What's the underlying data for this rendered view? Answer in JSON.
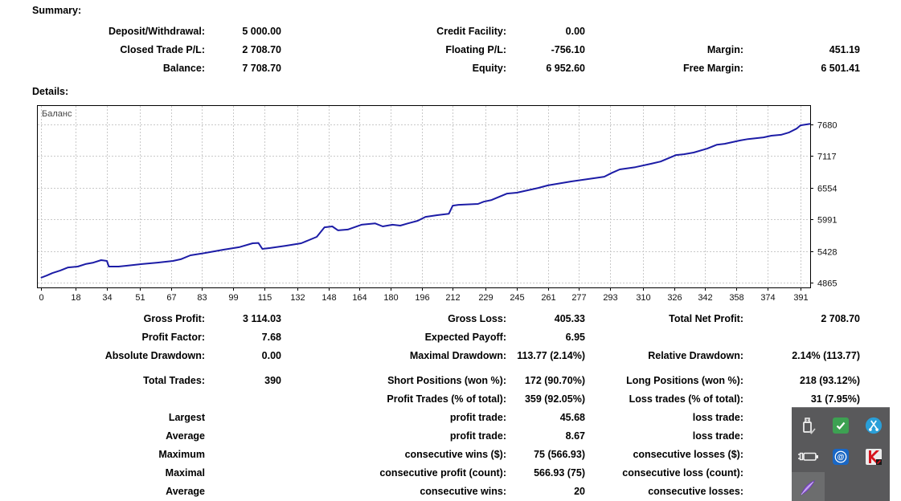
{
  "summary": {
    "heading": "Summary:",
    "rows": [
      [
        "Deposit/Withdrawal:",
        "5 000.00",
        "Credit Facility:",
        "0.00",
        "",
        ""
      ],
      [
        "Closed Trade P/L:",
        "2 708.70",
        "Floating P/L:",
        "-756.10",
        "Margin:",
        "451.19"
      ],
      [
        "Balance:",
        "7 708.70",
        "Equity:",
        "6 952.60",
        "Free Margin:",
        "6 501.41"
      ]
    ]
  },
  "details": {
    "heading": "Details:",
    "profit_rows": [
      [
        "Gross Profit:",
        "3 114.03",
        "Gross Loss:",
        "405.33",
        "Total Net Profit:",
        "2 708.70"
      ],
      [
        "Profit Factor:",
        "7.68",
        "Expected Payoff:",
        "6.95",
        "",
        ""
      ],
      [
        "Absolute Drawdown:",
        "0.00",
        "Maximal Drawdown:",
        "113.77 (2.14%)",
        "Relative Drawdown:",
        "2.14% (113.77)"
      ]
    ],
    "trade_rows": [
      [
        "Total Trades:",
        "390",
        "Short Positions (won %):",
        "172 (90.70%)",
        "Long Positions (won %):",
        "218 (93.12%)"
      ],
      [
        "",
        "",
        "Profit Trades (% of total):",
        "359 (92.05%)",
        "Loss trades (% of total):",
        "31 (7.95%)"
      ],
      [
        "Largest",
        "",
        "profit trade:",
        "45.68",
        "loss trade:",
        ""
      ],
      [
        "Average",
        "",
        "profit trade:",
        "8.67",
        "loss trade:",
        ""
      ],
      [
        "Maximum",
        "",
        "consecutive wins ($):",
        "75 (566.93)",
        "consecutive losses ($):",
        ""
      ],
      [
        "Maximal",
        "",
        "consecutive profit (count):",
        "566.93 (75)",
        "consecutive loss (count):",
        ""
      ],
      [
        "Average",
        "",
        "consecutive wins:",
        "20",
        "consecutive losses:",
        ""
      ]
    ]
  },
  "chart_data": {
    "type": "line",
    "title": "Баланс",
    "xlabel": "",
    "ylabel": "",
    "x_ticks": [
      0,
      18,
      34,
      51,
      67,
      83,
      99,
      115,
      132,
      148,
      164,
      180,
      196,
      212,
      229,
      245,
      261,
      277,
      293,
      310,
      326,
      342,
      358,
      374,
      391
    ],
    "y_ticks": [
      4865,
      5428,
      5991,
      6554,
      7117,
      7680
    ],
    "xlim": [
      -2,
      396
    ],
    "ylim": [
      4779,
      8023
    ],
    "grid": "dashed",
    "legend": "none",
    "series": [
      {
        "name": "Баланс",
        "points": [
          [
            0,
            4950
          ],
          [
            3,
            4990
          ],
          [
            6,
            5035
          ],
          [
            10,
            5080
          ],
          [
            14,
            5135
          ],
          [
            19,
            5150
          ],
          [
            23,
            5195
          ],
          [
            27,
            5220
          ],
          [
            31,
            5265
          ],
          [
            34,
            5250
          ],
          [
            35,
            5150
          ],
          [
            40,
            5150
          ],
          [
            44,
            5165
          ],
          [
            52,
            5195
          ],
          [
            60,
            5220
          ],
          [
            68,
            5250
          ],
          [
            72,
            5280
          ],
          [
            77,
            5350
          ],
          [
            85,
            5395
          ],
          [
            94,
            5450
          ],
          [
            102,
            5495
          ],
          [
            109,
            5565
          ],
          [
            112,
            5570
          ],
          [
            114,
            5465
          ],
          [
            118,
            5480
          ],
          [
            126,
            5520
          ],
          [
            134,
            5565
          ],
          [
            142,
            5680
          ],
          [
            146,
            5850
          ],
          [
            150,
            5865
          ],
          [
            153,
            5795
          ],
          [
            158,
            5810
          ],
          [
            165,
            5895
          ],
          [
            172,
            5920
          ],
          [
            176,
            5865
          ],
          [
            181,
            5895
          ],
          [
            185,
            5880
          ],
          [
            189,
            5920
          ],
          [
            194,
            5965
          ],
          [
            198,
            6035
          ],
          [
            204,
            6065
          ],
          [
            210,
            6090
          ],
          [
            212,
            6235
          ],
          [
            215,
            6250
          ],
          [
            225,
            6265
          ],
          [
            228,
            6305
          ],
          [
            232,
            6335
          ],
          [
            240,
            6450
          ],
          [
            245,
            6465
          ],
          [
            256,
            6550
          ],
          [
            261,
            6595
          ],
          [
            273,
            6665
          ],
          [
            281,
            6705
          ],
          [
            290,
            6750
          ],
          [
            294,
            6820
          ],
          [
            298,
            6880
          ],
          [
            306,
            6920
          ],
          [
            314,
            6980
          ],
          [
            319,
            7020
          ],
          [
            327,
            7135
          ],
          [
            331,
            7150
          ],
          [
            336,
            7180
          ],
          [
            343,
            7250
          ],
          [
            348,
            7320
          ],
          [
            352,
            7335
          ],
          [
            360,
            7395
          ],
          [
            364,
            7420
          ],
          [
            372,
            7450
          ],
          [
            376,
            7480
          ],
          [
            381,
            7495
          ],
          [
            385,
            7535
          ],
          [
            389,
            7605
          ],
          [
            391,
            7665
          ],
          [
            396,
            7690
          ]
        ]
      }
    ]
  },
  "tray": {
    "icons": [
      {
        "name": "usb-safely-remove-icon"
      },
      {
        "name": "green-check-icon"
      },
      {
        "name": "scissors-icon"
      },
      {
        "name": "battery-power-icon"
      },
      {
        "name": "email-at-icon"
      },
      {
        "name": "kaspersky-antivirus-icon"
      },
      {
        "name": "feather-pen-icon"
      }
    ]
  },
  "colors": {
    "line": "#1c1ca6",
    "grid": "#c9c9c9",
    "text": "#000000",
    "axis_text": "#111111",
    "chart_label": "#444444",
    "tray_bg": "#59595b",
    "tray_tile": "#6c6d6e",
    "green_tile": "#3da152",
    "blue_circle": "#2a9fd8",
    "email_tile": "#1967c5",
    "feather": "#a678e2"
  }
}
